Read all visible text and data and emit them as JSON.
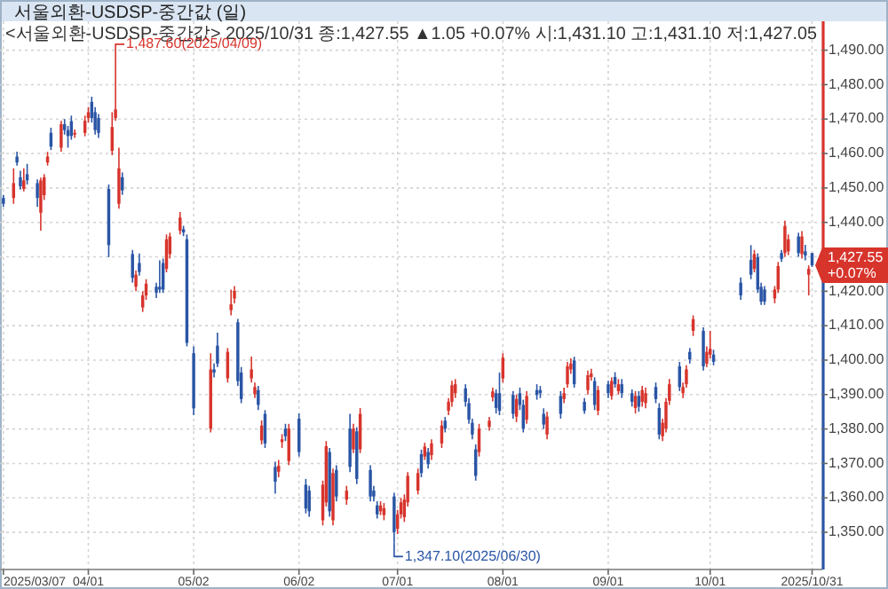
{
  "chart_data": {
    "type": "candlestick",
    "title": "서울외환-USDSP-중간값 (일)",
    "subtitle": "<서울외환-USDSP-중간값> 2025/10/31 종:1,427.55 ▲1.05 +0.07% 시:1,431.10 고:1,431.10 저:1,427.05",
    "x": [
      "2025-03-07",
      "2025-03-10",
      "2025-03-11",
      "2025-03-12",
      "2025-03-13",
      "2025-03-14",
      "2025-03-17",
      "2025-03-18",
      "2025-03-19",
      "2025-03-20",
      "2025-03-21",
      "2025-03-24",
      "2025-03-25",
      "2025-03-26",
      "2025-03-27",
      "2025-03-28",
      "2025-03-31",
      "2025-04-01",
      "2025-04-02",
      "2025-04-03",
      "2025-04-04",
      "2025-04-07",
      "2025-04-08",
      "2025-04-09",
      "2025-04-10",
      "2025-04-11",
      "2025-04-14",
      "2025-04-15",
      "2025-04-16",
      "2025-04-17",
      "2025-04-18",
      "2025-04-21",
      "2025-04-22",
      "2025-04-23",
      "2025-04-24",
      "2025-04-25",
      "2025-04-28",
      "2025-04-29",
      "2025-04-30",
      "2025-05-02",
      "2025-05-07",
      "2025-05-08",
      "2025-05-09",
      "2025-05-12",
      "2025-05-13",
      "2025-05-14",
      "2025-05-15",
      "2025-05-16",
      "2025-05-19",
      "2025-05-20",
      "2025-05-21",
      "2025-05-22",
      "2025-05-23",
      "2025-05-26",
      "2025-05-27",
      "2025-05-28",
      "2025-05-29",
      "2025-05-30",
      "2025-06-02",
      "2025-06-04",
      "2025-06-05",
      "2025-06-09",
      "2025-06-10",
      "2025-06-11",
      "2025-06-12",
      "2025-06-13",
      "2025-06-16",
      "2025-06-17",
      "2025-06-18",
      "2025-06-19",
      "2025-06-20",
      "2025-06-23",
      "2025-06-24",
      "2025-06-25",
      "2025-06-26",
      "2025-06-27",
      "2025-06-30",
      "2025-07-01",
      "2025-07-02",
      "2025-07-03",
      "2025-07-04",
      "2025-07-07",
      "2025-07-08",
      "2025-07-09",
      "2025-07-10",
      "2025-07-11",
      "2025-07-14",
      "2025-07-15",
      "2025-07-16",
      "2025-07-17",
      "2025-07-18",
      "2025-07-21",
      "2025-07-22",
      "2025-07-23",
      "2025-07-24",
      "2025-07-25",
      "2025-07-28",
      "2025-07-29",
      "2025-07-30",
      "2025-07-31",
      "2025-08-01",
      "2025-08-04",
      "2025-08-05",
      "2025-08-06",
      "2025-08-07",
      "2025-08-08",
      "2025-08-11",
      "2025-08-12",
      "2025-08-13",
      "2025-08-14",
      "2025-08-18",
      "2025-08-19",
      "2025-08-20",
      "2025-08-21",
      "2025-08-22",
      "2025-08-25",
      "2025-08-26",
      "2025-08-27",
      "2025-08-28",
      "2025-08-29",
      "2025-09-01",
      "2025-09-02",
      "2025-09-03",
      "2025-09-04",
      "2025-09-05",
      "2025-09-08",
      "2025-09-09",
      "2025-09-10",
      "2025-09-11",
      "2025-09-12",
      "2025-09-15",
      "2025-09-16",
      "2025-09-17",
      "2025-09-18",
      "2025-09-19",
      "2025-09-22",
      "2025-09-23",
      "2025-09-24",
      "2025-09-25",
      "2025-09-26",
      "2025-09-29",
      "2025-09-30",
      "2025-10-01",
      "2025-10-02",
      "2025-10-10",
      "2025-10-13",
      "2025-10-14",
      "2025-10-15",
      "2025-10-16",
      "2025-10-17",
      "2025-10-20",
      "2025-10-21",
      "2025-10-22",
      "2025-10-23",
      "2025-10-24",
      "2025-10-27",
      "2025-10-28",
      "2025-10-29",
      "2025-10-30",
      "2025-10-31"
    ],
    "ohlc": [
      [
        1447.1,
        1448.0,
        1444.5,
        1445.4
      ],
      [
        1447.1,
        1455.7,
        1445.4,
        1451.4
      ],
      [
        1459.1,
        1460.5,
        1456.5,
        1457.4
      ],
      [
        1453.1,
        1455.0,
        1449.5,
        1450.5
      ],
      [
        1449.7,
        1455.7,
        1449.0,
        1452.2
      ],
      [
        1454.0,
        1457.0,
        1451.0,
        1452.2
      ],
      [
        1451.4,
        1452.5,
        1444.5,
        1447.1
      ],
      [
        1442.8,
        1453.0,
        1437.6,
        1452.2
      ],
      [
        1447.9,
        1454.0,
        1446.5,
        1453.1
      ],
      [
        1457.4,
        1460.5,
        1456.5,
        1459.1
      ],
      [
        1466.0,
        1467.5,
        1461.0,
        1462.0
      ],
      [
        1461.7,
        1469.5,
        1460.5,
        1468.5
      ],
      [
        1468.5,
        1470.0,
        1465.5,
        1466.8
      ],
      [
        1466.8,
        1468.0,
        1461.7,
        1465.1
      ],
      [
        1469.4,
        1471.0,
        1464.0,
        1465.1
      ],
      [
        1465.5,
        1467.0,
        1464.5,
        1466.0
      ],
      [
        1466.0,
        1471.0,
        1465.0,
        1469.5
      ],
      [
        1470.3,
        1473.5,
        1469.0,
        1472.0
      ],
      [
        1475.0,
        1476.5,
        1469.0,
        1470.3
      ],
      [
        1472.0,
        1473.5,
        1465.5,
        1466.8
      ],
      [
        1470.3,
        1471.5,
        1464.5,
        1466.0
      ],
      [
        1449.7,
        1451.0,
        1429.9,
        1433.4
      ],
      [
        1460.8,
        1472.0,
        1459.5,
        1467.7
      ],
      [
        1470.3,
        1487.6,
        1469.5,
        1472.8
      ],
      [
        1445.4,
        1461.7,
        1444.0,
        1455.7
      ],
      [
        1453.1,
        1454.5,
        1448.0,
        1449.3
      ],
      [
        1430.8,
        1432.0,
        1422.5,
        1423.9
      ],
      [
        1421.3,
        1426.0,
        1420.0,
        1424.8
      ],
      [
        1428.2,
        1431.0,
        1424.5,
        1425.6
      ],
      [
        1415.3,
        1420.0,
        1414.0,
        1418.8
      ],
      [
        1418.8,
        1423.5,
        1417.5,
        1422.2
      ],
      [
        1421.3,
        1422.5,
        1418.0,
        1419.6
      ],
      [
        1421.3,
        1429.0,
        1419.5,
        1420.5
      ],
      [
        1428.2,
        1429.5,
        1419.5,
        1420.5
      ],
      [
        1426.5,
        1436.5,
        1425.5,
        1435.1
      ],
      [
        1430.8,
        1437.0,
        1429.5,
        1435.9
      ],
      [
        1437.6,
        1443.0,
        1436.5,
        1441.4
      ],
      [
        1438.0,
        1439.0,
        1436.0,
        1437.1
      ],
      [
        1435.1,
        1436.5,
        1404.0,
        1405.0
      ],
      [
        1402.0,
        1404.0,
        1384.0,
        1386.0
      ],
      [
        1380.1,
        1402.0,
        1379.0,
        1397.3
      ],
      [
        1397.3,
        1399.0,
        1395.0,
        1396.4
      ],
      [
        1404.2,
        1408.0,
        1398.0,
        1399.0
      ],
      [
        1394.7,
        1403.5,
        1393.5,
        1402.4
      ],
      [
        1414.5,
        1420.5,
        1413.0,
        1416.2
      ],
      [
        1417.9,
        1421.5,
        1416.5,
        1420.1
      ],
      [
        1411.0,
        1412.0,
        1392.5,
        1393.9
      ],
      [
        1396.4,
        1398.0,
        1387.5,
        1388.7
      ],
      [
        1394.7,
        1401.0,
        1393.5,
        1397.3
      ],
      [
        1390.1,
        1393.5,
        1389.0,
        1392.2
      ],
      [
        1391.3,
        1392.5,
        1385.5,
        1387.0
      ],
      [
        1376.7,
        1382.5,
        1375.5,
        1381.0
      ],
      [
        1384.4,
        1385.5,
        1374.5,
        1375.8
      ],
      [
        1369.0,
        1370.5,
        1361.2,
        1364.7
      ],
      [
        1367.6,
        1371.0,
        1366.0,
        1369.3
      ],
      [
        1376.2,
        1378.5,
        1374.5,
        1377.0
      ],
      [
        1380.1,
        1381.5,
        1376.5,
        1377.9
      ],
      [
        1370.7,
        1381.5,
        1369.5,
        1380.1
      ],
      [
        1383.0,
        1384.5,
        1372.0,
        1373.3
      ],
      [
        1363.8,
        1365.5,
        1355.5,
        1356.9
      ],
      [
        1362.1,
        1363.5,
        1354.5,
        1356.1
      ],
      [
        1353.5,
        1365.0,
        1352.0,
        1363.8
      ],
      [
        1358.7,
        1376.5,
        1357.5,
        1375.0
      ],
      [
        1373.3,
        1374.5,
        1354.5,
        1356.1
      ],
      [
        1353.5,
        1368.5,
        1352.0,
        1367.2
      ],
      [
        1368.1,
        1369.5,
        1359.0,
        1360.4
      ],
      [
        1359.5,
        1363.5,
        1358.0,
        1362.1
      ],
      [
        1380.1,
        1384.4,
        1367.5,
        1369.0
      ],
      [
        1374.1,
        1381.5,
        1373.0,
        1380.1
      ],
      [
        1379.3,
        1380.5,
        1364.0,
        1365.5
      ],
      [
        1374.1,
        1386.1,
        1373.0,
        1384.4
      ],
      [
        1368.1,
        1369.5,
        1359.0,
        1360.4
      ],
      [
        1362.1,
        1363.5,
        1359.0,
        1360.4
      ],
      [
        1357.8,
        1359.0,
        1354.0,
        1355.2
      ],
      [
        1356.1,
        1359.0,
        1355.0,
        1357.8
      ],
      [
        1355.0,
        1358.5,
        1353.5,
        1357.0
      ],
      [
        1360.4,
        1361.5,
        1347.1,
        1350.1
      ],
      [
        1351.0,
        1356.5,
        1349.5,
        1355.2
      ],
      [
        1355.2,
        1360.0,
        1354.0,
        1358.7
      ],
      [
        1354.4,
        1361.0,
        1353.0,
        1359.5
      ],
      [
        1358.7,
        1367.5,
        1357.5,
        1366.4
      ],
      [
        1362.1,
        1368.5,
        1361.0,
        1367.2
      ],
      [
        1372.7,
        1374.0,
        1366.0,
        1367.2
      ],
      [
        1372.0,
        1376.0,
        1371.0,
        1374.9
      ],
      [
        1373.3,
        1374.5,
        1368.5,
        1369.8
      ],
      [
        1372.4,
        1377.0,
        1371.0,
        1375.8
      ],
      [
        1375.8,
        1382.5,
        1374.5,
        1381.0
      ],
      [
        1382.4,
        1383.5,
        1379.0,
        1380.1
      ],
      [
        1385.3,
        1389.0,
        1384.0,
        1387.9
      ],
      [
        1387.9,
        1394.0,
        1386.5,
        1392.7
      ],
      [
        1390.4,
        1394.5,
        1389.0,
        1393.0
      ],
      [
        1391.8,
        1393.0,
        1386.5,
        1387.9
      ],
      [
        1387.5,
        1389.0,
        1381.5,
        1382.7
      ],
      [
        1381.8,
        1383.0,
        1377.0,
        1378.4
      ],
      [
        1374.1,
        1375.5,
        1365.0,
        1366.4
      ],
      [
        1373.3,
        1381.5,
        1372.0,
        1380.1
      ],
      [
        1380.6,
        1383.5,
        1379.5,
        1382.4
      ],
      [
        1389.2,
        1392.0,
        1388.0,
        1390.9
      ],
      [
        1390.4,
        1391.5,
        1384.5,
        1386.1
      ],
      [
        1390.4,
        1396.4,
        1384.0,
        1385.3
      ],
      [
        1394.7,
        1402.0,
        1393.5,
        1400.7
      ],
      [
        1389.9,
        1391.0,
        1383.0,
        1384.4
      ],
      [
        1383.6,
        1390.0,
        1382.0,
        1388.7
      ],
      [
        1390.4,
        1392.0,
        1385.5,
        1387.0
      ],
      [
        1387.0,
        1388.5,
        1379.0,
        1380.1
      ],
      [
        1382.7,
        1391.0,
        1381.5,
        1389.6
      ],
      [
        1391.3,
        1393.0,
        1388.5,
        1389.9
      ],
      [
        1391.3,
        1392.5,
        1389.0,
        1390.4
      ],
      [
        1384.4,
        1386.0,
        1380.0,
        1381.3
      ],
      [
        1378.4,
        1385.0,
        1377.0,
        1383.6
      ],
      [
        1389.6,
        1391.0,
        1383.0,
        1384.4
      ],
      [
        1388.7,
        1392.0,
        1387.5,
        1390.4
      ],
      [
        1393.0,
        1399.5,
        1392.0,
        1398.2
      ],
      [
        1397.3,
        1400.5,
        1396.0,
        1399.0
      ],
      [
        1399.9,
        1401.0,
        1392.0,
        1393.0
      ],
      [
        1387.9,
        1389.0,
        1384.4,
        1385.3
      ],
      [
        1391.3,
        1397.0,
        1390.0,
        1395.6
      ],
      [
        1395.1,
        1397.5,
        1394.0,
        1396.1
      ],
      [
        1393.9,
        1395.0,
        1385.5,
        1387.0
      ],
      [
        1385.3,
        1392.5,
        1384.0,
        1391.3
      ],
      [
        1393.0,
        1394.0,
        1389.0,
        1390.4
      ],
      [
        1389.6,
        1395.0,
        1388.5,
        1393.9
      ],
      [
        1395.1,
        1396.5,
        1392.0,
        1393.0
      ],
      [
        1391.0,
        1394.5,
        1390.0,
        1393.0
      ],
      [
        1393.0,
        1394.5,
        1389.0,
        1390.4
      ],
      [
        1390.4,
        1391.5,
        1386.5,
        1387.9
      ],
      [
        1386.1,
        1391.0,
        1384.5,
        1389.6
      ],
      [
        1389.6,
        1391.0,
        1385.0,
        1386.5
      ],
      [
        1387.9,
        1392.5,
        1386.5,
        1391.3
      ],
      [
        1387.5,
        1392.0,
        1386.0,
        1390.4
      ],
      [
        1392.2,
        1393.5,
        1387.5,
        1388.7
      ],
      [
        1386.1,
        1387.5,
        1377.0,
        1378.4
      ],
      [
        1377.9,
        1383.0,
        1376.5,
        1381.8
      ],
      [
        1380.1,
        1389.0,
        1379.0,
        1387.9
      ],
      [
        1388.2,
        1394.5,
        1387.0,
        1393.0
      ],
      [
        1398.2,
        1399.5,
        1391.0,
        1392.2
      ],
      [
        1390.4,
        1393.5,
        1389.0,
        1392.2
      ],
      [
        1393.0,
        1398.5,
        1392.0,
        1397.3
      ],
      [
        1402.4,
        1403.5,
        1399.0,
        1400.2
      ],
      [
        1408.5,
        1413.0,
        1407.0,
        1411.9
      ],
      [
        1408.5,
        1409.5,
        1397.0,
        1398.2
      ],
      [
        1399.0,
        1404.0,
        1398.0,
        1402.4
      ],
      [
        1401.6,
        1408.5,
        1400.5,
        1403.3
      ],
      [
        1401.6,
        1403.0,
        1398.5,
        1399.5
      ],
      [
        1422.5,
        1424.0,
        1417.5,
        1418.8
      ],
      [
        1429.1,
        1433.4,
        1423.5,
        1424.8
      ],
      [
        1426.5,
        1432.0,
        1425.5,
        1430.8
      ],
      [
        1429.9,
        1431.0,
        1419.5,
        1420.5
      ],
      [
        1421.3,
        1422.5,
        1416.0,
        1417.0
      ],
      [
        1420.5,
        1421.5,
        1416.0,
        1417.0
      ],
      [
        1417.9,
        1421.5,
        1416.5,
        1420.5
      ],
      [
        1420.5,
        1428.5,
        1419.5,
        1427.3
      ],
      [
        1431.1,
        1432.0,
        1428.5,
        1429.4
      ],
      [
        1431.1,
        1440.5,
        1430.0,
        1439.0
      ],
      [
        1431.6,
        1436.5,
        1430.5,
        1435.1
      ],
      [
        1435.9,
        1437.0,
        1430.0,
        1431.1
      ],
      [
        1430.8,
        1437.5,
        1429.5,
        1435.9
      ],
      [
        1431.6,
        1433.5,
        1429.0,
        1430.4
      ],
      [
        1424.8,
        1427.5,
        1418.8,
        1426.5
      ],
      [
        1431.1,
        1431.1,
        1427.05,
        1427.55
      ]
    ],
    "colors": [
      "#2a55a5",
      "#d7342c",
      "#2a55a5",
      "#2a55a5",
      "#d7342c",
      "#2a55a5",
      "#2a55a5",
      "#d7342c",
      "#d7342c",
      "#d7342c",
      "#2a55a5",
      "#d7342c",
      "#2a55a5",
      "#2a55a5",
      "#2a55a5",
      "#d7342c",
      "#d7342c",
      "#d7342c",
      "#2a55a5",
      "#2a55a5",
      "#2a55a5",
      "#2a55a5",
      "#d7342c",
      "#d7342c",
      "#d7342c",
      "#2a55a5",
      "#2a55a5",
      "#d7342c",
      "#2a55a5",
      "#d7342c",
      "#d7342c",
      "#2a55a5",
      "#2a55a5",
      "#2a55a5",
      "#d7342c",
      "#d7342c",
      "#d7342c",
      "#2a55a5",
      "#2a55a5",
      "#2a55a5",
      "#d7342c",
      "#2a55a5",
      "#2a55a5",
      "#d7342c",
      "#d7342c",
      "#d7342c",
      "#2a55a5",
      "#2a55a5",
      "#d7342c",
      "#d7342c",
      "#2a55a5",
      "#d7342c",
      "#2a55a5",
      "#2a55a5",
      "#d7342c",
      "#d7342c",
      "#2a55a5",
      "#d7342c",
      "#2a55a5",
      "#2a55a5",
      "#2a55a5",
      "#d7342c",
      "#d7342c",
      "#2a55a5",
      "#d7342c",
      "#2a55a5",
      "#d7342c",
      "#2a55a5",
      "#d7342c",
      "#2a55a5",
      "#d7342c",
      "#2a55a5",
      "#2a55a5",
      "#2a55a5",
      "#d7342c",
      "#d7342c",
      "#2a55a5",
      "#d7342c",
      "#d7342c",
      "#d7342c",
      "#d7342c",
      "#d7342c",
      "#2a55a5",
      "#d7342c",
      "#2a55a5",
      "#d7342c",
      "#d7342c",
      "#2a55a5",
      "#d7342c",
      "#d7342c",
      "#d7342c",
      "#2a55a5",
      "#2a55a5",
      "#2a55a5",
      "#2a55a5",
      "#d7342c",
      "#d7342c",
      "#d7342c",
      "#2a55a5",
      "#2a55a5",
      "#d7342c",
      "#2a55a5",
      "#d7342c",
      "#2a55a5",
      "#2a55a5",
      "#d7342c",
      "#2a55a5",
      "#2a55a5",
      "#2a55a5",
      "#d7342c",
      "#2a55a5",
      "#d7342c",
      "#d7342c",
      "#d7342c",
      "#2a55a5",
      "#2a55a5",
      "#d7342c",
      "#d7342c",
      "#2a55a5",
      "#d7342c",
      "#2a55a5",
      "#d7342c",
      "#2a55a5",
      "#d7342c",
      "#2a55a5",
      "#2a55a5",
      "#d7342c",
      "#2a55a5",
      "#d7342c",
      "#d7342c",
      "#2a55a5",
      "#2a55a5",
      "#d7342c",
      "#d7342c",
      "#d7342c",
      "#2a55a5",
      "#d7342c",
      "#d7342c",
      "#2a55a5",
      "#d7342c",
      "#2a55a5",
      "#d7342c",
      "#d7342c",
      "#2a55a5",
      "#2a55a5",
      "#2a55a5",
      "#d7342c",
      "#2a55a5",
      "#2a55a5",
      "#2a55a5",
      "#d7342c",
      "#d7342c",
      "#2a55a5",
      "#d7342c",
      "#d7342c",
      "#2a55a5",
      "#d7342c",
      "#2a55a5",
      "#d7342c",
      "#2a55a5"
    ],
    "xlim": [
      "2025-03-06",
      "2025-11-03"
    ],
    "xticks": [
      {
        "value": "2025-03-07",
        "label": "2025/03/07"
      },
      {
        "value": "2025-04-01",
        "label": "04/01"
      },
      {
        "value": "2025-05-02",
        "label": "05/02"
      },
      {
        "value": "2025-06-02",
        "label": "06/02"
      },
      {
        "value": "2025-07-01",
        "label": "07/01"
      },
      {
        "value": "2025-08-01",
        "label": "08/01"
      },
      {
        "value": "2025-09-01",
        "label": "09/01"
      },
      {
        "value": "2025-10-01",
        "label": "10/01"
      },
      {
        "value": "2025-10-31",
        "label": "2025/10/31"
      }
    ],
    "ylim": [
      1339.2,
      1498.4
    ],
    "yticks": [
      {
        "value": 1350,
        "label": "1,350.00"
      },
      {
        "value": 1360,
        "label": "1,360.00"
      },
      {
        "value": 1370,
        "label": "1,370.00"
      },
      {
        "value": 1380,
        "label": "1,380.00"
      },
      {
        "value": 1390,
        "label": "1,390.00"
      },
      {
        "value": 1400,
        "label": "1,400.00"
      },
      {
        "value": 1410,
        "label": "1,410.00"
      },
      {
        "value": 1420,
        "label": "1,420.00"
      },
      {
        "value": 1430,
        "label": null
      },
      {
        "value": 1440,
        "label": "1,440.00"
      },
      {
        "value": 1450,
        "label": "1,450.00"
      },
      {
        "value": 1460,
        "label": "1,460.00"
      },
      {
        "value": 1470,
        "label": "1,470.00"
      },
      {
        "value": 1480,
        "label": "1,480.00"
      },
      {
        "value": 1490,
        "label": "1,490.00"
      }
    ],
    "grid": true,
    "annotations": [
      {
        "text": "1,487.60(2025/04/09)",
        "x": "2025-04-09",
        "y": 1487.6
      },
      {
        "text": "1,347.10(2025/06/30)",
        "x": "2025-06-30",
        "y": 1347.1
      },
      {
        "text": "1,427.55 +0.07%",
        "x": "2025-10-31",
        "y": 1427.55
      }
    ]
  }
}
